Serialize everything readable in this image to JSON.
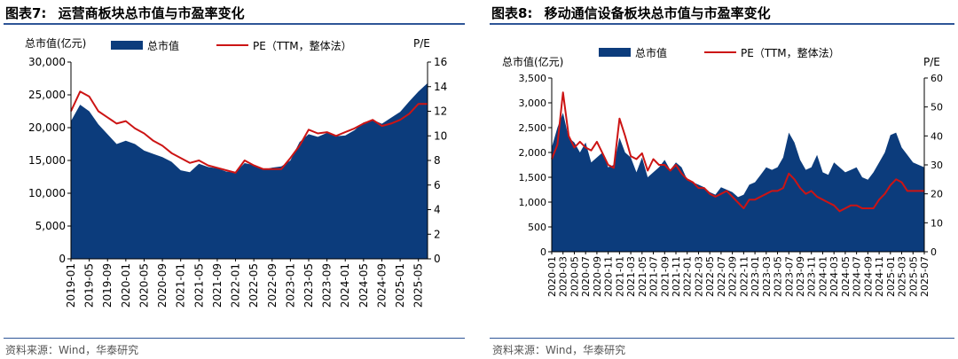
{
  "panels": [
    {
      "fig_label": "图表7:",
      "fig_title": "运营商板块总市值与市盈率变化",
      "source": "资料来源：Wind，华泰研究"
    },
    {
      "fig_label": "图表8:",
      "fig_title": "移动通信设备板块总市值与市盈率变化",
      "source": "资料来源：Wind，华泰研究"
    }
  ],
  "colors": {
    "area": "#0c3c7c",
    "line": "#cc1414"
  },
  "chart_data": [
    {
      "type": "area",
      "title": "运营商板块总市值与市盈率变化",
      "ylabel": "总市值(亿元)",
      "y2label": "P/E",
      "ylim": [
        0,
        30000
      ],
      "yticks": [
        "30,000",
        "25,000",
        "20,000",
        "15,000",
        "10,000",
        "5,000",
        "0"
      ],
      "y2lim": [
        0,
        16
      ],
      "y2ticks": [
        "16",
        "14",
        "12",
        "10",
        "8",
        "6",
        "4",
        "2",
        "0"
      ],
      "legend": {
        "placement": "top",
        "series_area": "总市值",
        "series_line": "PE（TTM，整体法）"
      },
      "x_tick_labels": [
        "2019-01",
        "2019-05",
        "2019-09",
        "2020-01",
        "2020-05",
        "2020-09",
        "2021-01",
        "2021-05",
        "2021-09",
        "2022-01",
        "2022-05",
        "2022-09",
        "2023-01",
        "2023-05",
        "2023-09",
        "2024-01",
        "2024-05",
        "2024-09",
        "2025-01",
        "2025-05"
      ],
      "x": [
        "2019-01",
        "2019-03",
        "2019-05",
        "2019-07",
        "2019-09",
        "2019-11",
        "2020-01",
        "2020-03",
        "2020-05",
        "2020-07",
        "2020-09",
        "2020-11",
        "2021-01",
        "2021-03",
        "2021-05",
        "2021-07",
        "2021-09",
        "2021-11",
        "2022-01",
        "2022-03",
        "2022-05",
        "2022-07",
        "2022-09",
        "2022-11",
        "2023-01",
        "2023-03",
        "2023-05",
        "2023-07",
        "2023-09",
        "2023-11",
        "2024-01",
        "2024-03",
        "2024-05",
        "2024-07",
        "2024-09",
        "2024-11",
        "2025-01",
        "2025-03",
        "2025-05",
        "2025-07"
      ],
      "series": [
        {
          "name": "总市值",
          "axis": "left",
          "values": [
            21000,
            23500,
            22500,
            20500,
            19000,
            17500,
            18000,
            17500,
            16500,
            16000,
            15500,
            14800,
            13500,
            13200,
            14500,
            14000,
            13800,
            13300,
            13200,
            14600,
            14300,
            13600,
            13900,
            14100,
            15000,
            17800,
            19000,
            18600,
            19200,
            18700,
            18800,
            19600,
            20800,
            21200,
            20600,
            21500,
            22400,
            24000,
            25500,
            26800
          ]
        },
        {
          "name": "PE（TTM，整体法）",
          "axis": "right",
          "values": [
            12.0,
            13.6,
            13.2,
            12.0,
            11.5,
            11.0,
            11.2,
            10.6,
            10.2,
            9.6,
            9.2,
            8.6,
            8.2,
            7.8,
            8.0,
            7.6,
            7.4,
            7.2,
            7.0,
            8.0,
            7.6,
            7.3,
            7.3,
            7.3,
            8.2,
            9.2,
            10.5,
            10.2,
            10.3,
            10.0,
            10.3,
            10.6,
            11.0,
            11.3,
            10.8,
            11.0,
            11.3,
            11.8,
            12.6,
            12.6
          ]
        }
      ]
    },
    {
      "type": "area",
      "title": "移动通信设备板块总市值与市盈率变化",
      "ylabel": "总市值(亿元)",
      "y2label": "P/E",
      "ylim": [
        0,
        3500
      ],
      "yticks": [
        "3,500",
        "3,000",
        "2,500",
        "2,000",
        "1,500",
        "1,000",
        "500",
        "0"
      ],
      "y2lim": [
        0,
        60
      ],
      "y2ticks": [
        "60",
        "50",
        "40",
        "30",
        "20",
        "10",
        "0"
      ],
      "legend": {
        "placement": "top",
        "series_area": "总市值",
        "series_line": "PE（TTM，整体法）"
      },
      "x_tick_labels": [
        "2020-01",
        "2020-03",
        "2020-05",
        "2020-07",
        "2020-09",
        "2020-11",
        "2021-01",
        "2021-03",
        "2021-05",
        "2021-07",
        "2021-09",
        "2021-11",
        "2022-01",
        "2022-03",
        "2022-05",
        "2022-07",
        "2022-09",
        "2022-11",
        "2023-01",
        "2023-03",
        "2023-05",
        "2023-07",
        "2023-09",
        "2023-11",
        "2024-01",
        "2024-03",
        "2024-05",
        "2024-07",
        "2024-09",
        "2024-11",
        "2025-01",
        "2025-03",
        "2025-05",
        "2025-07"
      ],
      "x": [
        "2020-01",
        "2020-02",
        "2020-03",
        "2020-04",
        "2020-05",
        "2020-06",
        "2020-07",
        "2020-08",
        "2020-09",
        "2020-10",
        "2020-11",
        "2020-12",
        "2021-01",
        "2021-02",
        "2021-03",
        "2021-04",
        "2021-05",
        "2021-06",
        "2021-07",
        "2021-08",
        "2021-09",
        "2021-10",
        "2021-11",
        "2021-12",
        "2022-01",
        "2022-02",
        "2022-03",
        "2022-04",
        "2022-05",
        "2022-06",
        "2022-07",
        "2022-08",
        "2022-09",
        "2022-10",
        "2022-11",
        "2022-12",
        "2023-01",
        "2023-02",
        "2023-03",
        "2023-04",
        "2023-05",
        "2023-06",
        "2023-07",
        "2023-08",
        "2023-09",
        "2023-10",
        "2023-11",
        "2023-12",
        "2024-01",
        "2024-02",
        "2024-03",
        "2024-04",
        "2024-05",
        "2024-06",
        "2024-07",
        "2024-08",
        "2024-09",
        "2024-10",
        "2024-11",
        "2024-12",
        "2025-01",
        "2025-02",
        "2025-03",
        "2025-04",
        "2025-05",
        "2025-06",
        "2025-07"
      ],
      "series": [
        {
          "name": "总市值",
          "axis": "left",
          "values": [
            2100,
            2500,
            2800,
            2300,
            2200,
            2000,
            2200,
            1800,
            1900,
            2000,
            1700,
            1750,
            2300,
            2000,
            1900,
            1600,
            1900,
            1500,
            1600,
            1700,
            1850,
            1650,
            1800,
            1700,
            1450,
            1400,
            1350,
            1300,
            1200,
            1150,
            1300,
            1250,
            1200,
            1100,
            1150,
            1350,
            1400,
            1550,
            1700,
            1650,
            1700,
            1900,
            2400,
            2200,
            1850,
            1650,
            1700,
            1950,
            1600,
            1550,
            1800,
            1700,
            1600,
            1650,
            1700,
            1500,
            1450,
            1600,
            1800,
            2000,
            2350,
            2400,
            2100,
            1950,
            1800,
            1750,
            1700
          ]
        },
        {
          "name": "PE（TTM，整体法）",
          "axis": "right",
          "values": [
            32,
            37,
            55,
            40,
            36,
            38,
            36,
            35,
            38,
            34,
            30,
            29,
            46,
            40,
            33,
            32,
            34,
            28,
            32,
            30,
            30,
            28,
            30,
            27,
            25,
            24,
            22,
            22,
            20,
            19,
            20,
            21,
            19,
            17,
            15,
            18,
            18,
            19,
            20,
            21,
            21,
            22,
            27,
            25,
            22,
            20,
            21,
            19,
            18,
            17,
            16,
            14,
            15,
            16,
            16,
            15,
            15,
            15,
            18,
            20,
            23,
            25,
            24,
            21,
            21,
            21,
            21
          ]
        }
      ]
    }
  ]
}
